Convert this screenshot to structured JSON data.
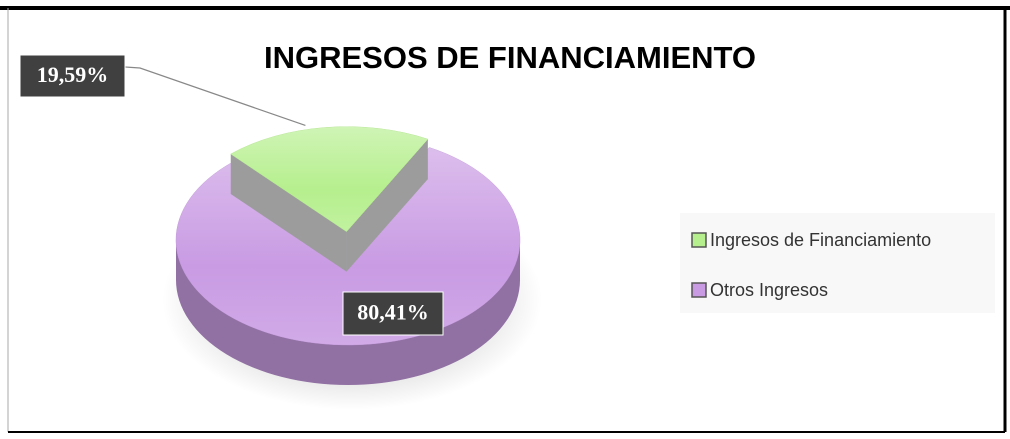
{
  "chart_data": {
    "type": "pie3d",
    "title": "INGRESOS DE FINANCIAMIENTO",
    "categories": [
      "Ingresos de Financiamiento",
      "Otros Ingresos"
    ],
    "values": [
      19.59,
      80.41
    ],
    "value_labels": [
      "19,59%",
      "80,41%"
    ],
    "colors": [
      "#b6ef8e",
      "#c99be3"
    ],
    "legend": "right"
  }
}
